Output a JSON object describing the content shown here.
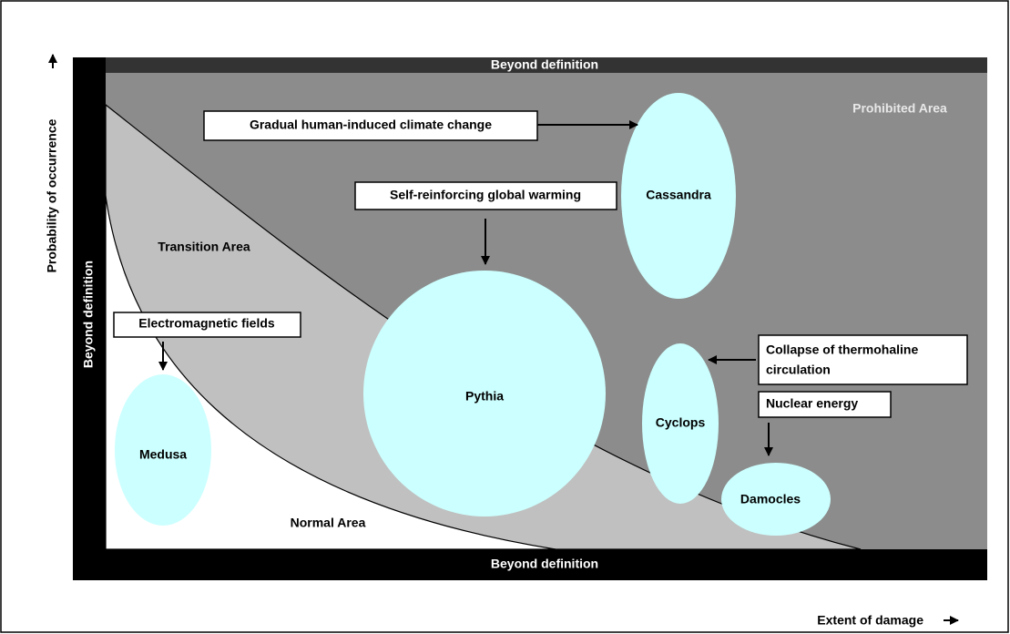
{
  "frame": {
    "top": "Beyond definition",
    "bottom": "Beyond definition",
    "left": "Beyond definition"
  },
  "areas": {
    "prohibited": "Prohibited Area",
    "transition": "Transition Area",
    "normal": "Normal Area"
  },
  "axes": {
    "y": "Probability of occurrence",
    "x": "Extent of damage"
  },
  "nodes": [
    {
      "label": "Cassandra"
    },
    {
      "label": "Pythia"
    },
    {
      "label": "Medusa"
    },
    {
      "label": "Cyclops"
    },
    {
      "label": "Damocles"
    }
  ],
  "annotations": [
    {
      "lines": [
        "Gradual human-induced climate change"
      ]
    },
    {
      "lines": [
        "Self-reinforcing global warming"
      ]
    },
    {
      "lines": [
        "Electromagnetic fields"
      ]
    },
    {
      "lines": [
        "Collapse of thermohaline",
        "circulation"
      ]
    },
    {
      "lines": [
        "Nuclear energy"
      ]
    }
  ]
}
